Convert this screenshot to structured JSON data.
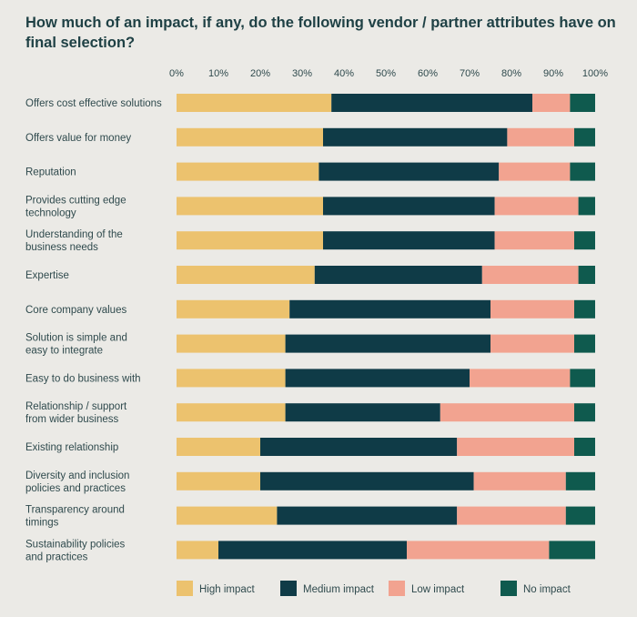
{
  "title": "How much of an impact, if any, do the following vendor / partner attributes have on final selection?",
  "chart_data": {
    "type": "bar",
    "orientation": "horizontal",
    "stacked": true,
    "title": "How much of an impact, if any, do the following vendor / partner attributes have on final selection?",
    "xlabel": "",
    "ylabel": "",
    "xlim": [
      0,
      100
    ],
    "ticks": [
      "0%",
      "10%",
      "20%",
      "30%",
      "40%",
      "50%",
      "60%",
      "70%",
      "80%",
      "90%",
      "100%"
    ],
    "legend_position": "bottom",
    "categories": [
      [
        "Offers cost effective solutions"
      ],
      [
        "Offers value for money"
      ],
      [
        "Reputation"
      ],
      [
        "Provides cutting edge",
        "technology"
      ],
      [
        "Understanding of the",
        "business needs"
      ],
      [
        "Expertise"
      ],
      [
        "Core company values"
      ],
      [
        "Solution is simple and",
        "easy to integrate"
      ],
      [
        "Easy to do business with"
      ],
      [
        "Relationship / support",
        "from wider business"
      ],
      [
        "Existing relationship"
      ],
      [
        "Diversity and inclusion",
        "policies and practices"
      ],
      [
        "Transparency around",
        "timings"
      ],
      [
        "Sustainability policies",
        "and practices"
      ]
    ],
    "series": [
      {
        "name": "High impact",
        "color": "#ecc26e",
        "values": [
          37,
          35,
          34,
          35,
          35,
          33,
          27,
          26,
          26,
          26,
          20,
          20,
          24,
          10
        ]
      },
      {
        "name": "Medium impact",
        "color": "#0f3b47",
        "values": [
          48,
          44,
          43,
          41,
          41,
          40,
          48,
          49,
          44,
          37,
          47,
          51,
          43,
          45
        ]
      },
      {
        "name": "Low impact",
        "color": "#f2a390",
        "values": [
          9,
          16,
          17,
          20,
          19,
          23,
          20,
          20,
          24,
          32,
          28,
          22,
          26,
          34
        ]
      },
      {
        "name": "No impact",
        "color": "#0f5a4e",
        "values": [
          6,
          5,
          6,
          4,
          5,
          4,
          5,
          5,
          6,
          5,
          5,
          7,
          7,
          11
        ]
      }
    ]
  }
}
